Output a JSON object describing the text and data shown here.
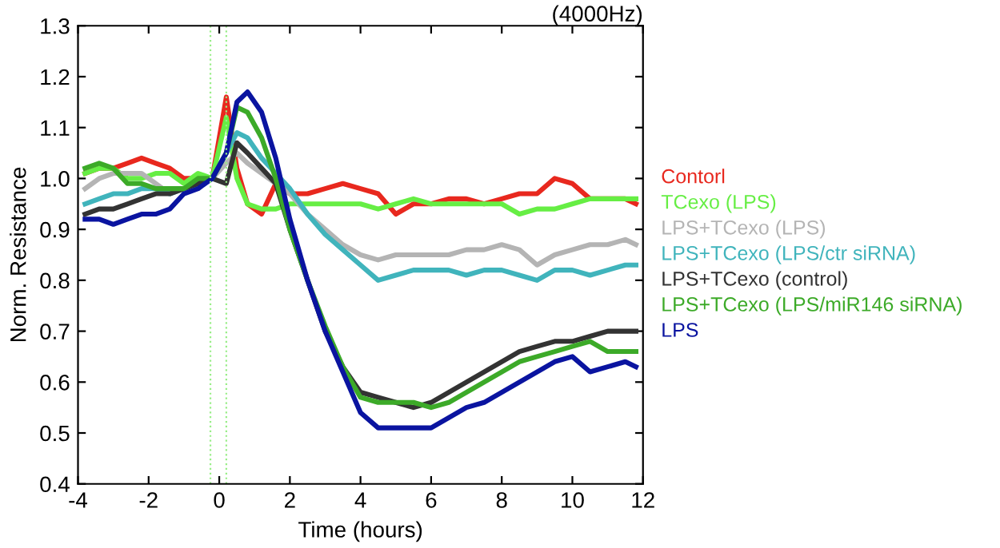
{
  "chart_data": {
    "type": "line",
    "title": "(4000Hz)",
    "xlabel": "Time (hours)",
    "ylabel": "Norm. Resistance",
    "x": [
      -3.8,
      -3.4,
      -3,
      -2.6,
      -2.2,
      -1.8,
      -1.4,
      -1,
      -0.6,
      -0.2,
      0.2,
      0.5,
      0.8,
      1.2,
      1.6,
      2,
      2.5,
      3,
      3.5,
      4,
      4.5,
      5,
      5.5,
      6,
      6.5,
      7,
      7.5,
      8,
      8.5,
      9,
      9.5,
      10,
      10.5,
      11,
      11.5,
      11.8
    ],
    "series": [
      {
        "name": "Contorl",
        "color": "#e8281e",
        "values": [
          1.01,
          1.02,
          1.02,
          1.03,
          1.04,
          1.03,
          1.02,
          1.0,
          1.0,
          1.0,
          1.16,
          1.02,
          0.95,
          0.93,
          0.99,
          0.97,
          0.97,
          0.98,
          0.99,
          0.98,
          0.97,
          0.93,
          0.95,
          0.95,
          0.96,
          0.96,
          0.95,
          0.96,
          0.97,
          0.97,
          1.0,
          0.99,
          0.96,
          0.96,
          0.96,
          0.95
        ]
      },
      {
        "name": "TCexo (LPS)",
        "color": "#66ee44",
        "values": [
          1.01,
          1.02,
          1.02,
          1.0,
          1.0,
          1.01,
          1.01,
          0.99,
          1.01,
          1.0,
          1.12,
          1.0,
          0.95,
          0.94,
          0.94,
          0.95,
          0.95,
          0.95,
          0.95,
          0.95,
          0.94,
          0.95,
          0.96,
          0.95,
          0.95,
          0.95,
          0.95,
          0.95,
          0.93,
          0.94,
          0.94,
          0.95,
          0.96,
          0.96,
          0.96,
          0.96
        ]
      },
      {
        "name": "LPS+TCexo (LPS)",
        "color": "#b4b4b4",
        "values": [
          0.98,
          1.0,
          1.01,
          1.01,
          1.01,
          0.99,
          0.97,
          0.98,
          0.99,
          1.0,
          1.03,
          1.05,
          1.03,
          1.01,
          0.99,
          0.97,
          0.93,
          0.9,
          0.87,
          0.85,
          0.84,
          0.85,
          0.85,
          0.85,
          0.85,
          0.86,
          0.86,
          0.87,
          0.86,
          0.83,
          0.85,
          0.86,
          0.87,
          0.87,
          0.88,
          0.87
        ]
      },
      {
        "name": "LPS+TCexo (LPS/ctr siRNA)",
        "color": "#40b4bc",
        "values": [
          0.95,
          0.96,
          0.97,
          0.97,
          0.98,
          0.98,
          0.97,
          0.98,
          0.99,
          1.0,
          1.05,
          1.09,
          1.08,
          1.04,
          1.01,
          0.98,
          0.93,
          0.89,
          0.86,
          0.83,
          0.8,
          0.81,
          0.82,
          0.82,
          0.82,
          0.81,
          0.82,
          0.82,
          0.81,
          0.8,
          0.82,
          0.82,
          0.81,
          0.82,
          0.83,
          0.83
        ]
      },
      {
        "name": "LPS+TCexo (control)",
        "color": "#333333",
        "values": [
          0.93,
          0.94,
          0.94,
          0.95,
          0.96,
          0.97,
          0.97,
          0.98,
          0.99,
          1.0,
          0.99,
          1.07,
          1.05,
          1.02,
          0.99,
          0.9,
          0.8,
          0.7,
          0.63,
          0.58,
          0.57,
          0.56,
          0.55,
          0.56,
          0.58,
          0.6,
          0.62,
          0.64,
          0.66,
          0.67,
          0.68,
          0.68,
          0.69,
          0.7,
          0.7,
          0.7
        ]
      },
      {
        "name": "LPS+TCexo (LPS/miR146 siRNA)",
        "color": "#3caa28",
        "values": [
          1.02,
          1.03,
          1.02,
          0.99,
          0.99,
          0.98,
          0.98,
          0.98,
          1.0,
          1.0,
          1.05,
          1.14,
          1.13,
          1.08,
          1.0,
          0.9,
          0.8,
          0.71,
          0.63,
          0.57,
          0.56,
          0.56,
          0.56,
          0.55,
          0.56,
          0.58,
          0.6,
          0.62,
          0.64,
          0.65,
          0.66,
          0.67,
          0.68,
          0.66,
          0.66,
          0.66
        ]
      },
      {
        "name": "LPS",
        "color": "#0a14a0",
        "values": [
          0.92,
          0.92,
          0.91,
          0.92,
          0.93,
          0.93,
          0.94,
          0.97,
          0.98,
          1.0,
          1.05,
          1.15,
          1.17,
          1.13,
          1.04,
          0.92,
          0.8,
          0.7,
          0.62,
          0.54,
          0.51,
          0.51,
          0.51,
          0.51,
          0.53,
          0.55,
          0.56,
          0.58,
          0.6,
          0.62,
          0.64,
          0.65,
          0.62,
          0.63,
          0.64,
          0.63
        ]
      }
    ],
    "ref_lines": [
      {
        "axis": "x",
        "value": -0.25,
        "color": "#99ee88",
        "line_style": "dotted"
      },
      {
        "axis": "x",
        "value": 0.2,
        "color": "#99ee88",
        "line_style": "dotted"
      }
    ],
    "xlim": [
      -4,
      12
    ],
    "xticks": [
      -4,
      -2,
      0,
      2,
      4,
      6,
      8,
      10,
      12
    ],
    "ylim": [
      0.4,
      1.3
    ],
    "yticks": [
      0.4,
      0.5,
      0.6,
      0.7,
      0.8,
      0.9,
      {
        "value": 1,
        "label": "1.0"
      },
      1.1,
      1.2,
      1.3
    ],
    "grid": false,
    "legend": "right",
    "line_style": "solid",
    "marker": "none"
  }
}
